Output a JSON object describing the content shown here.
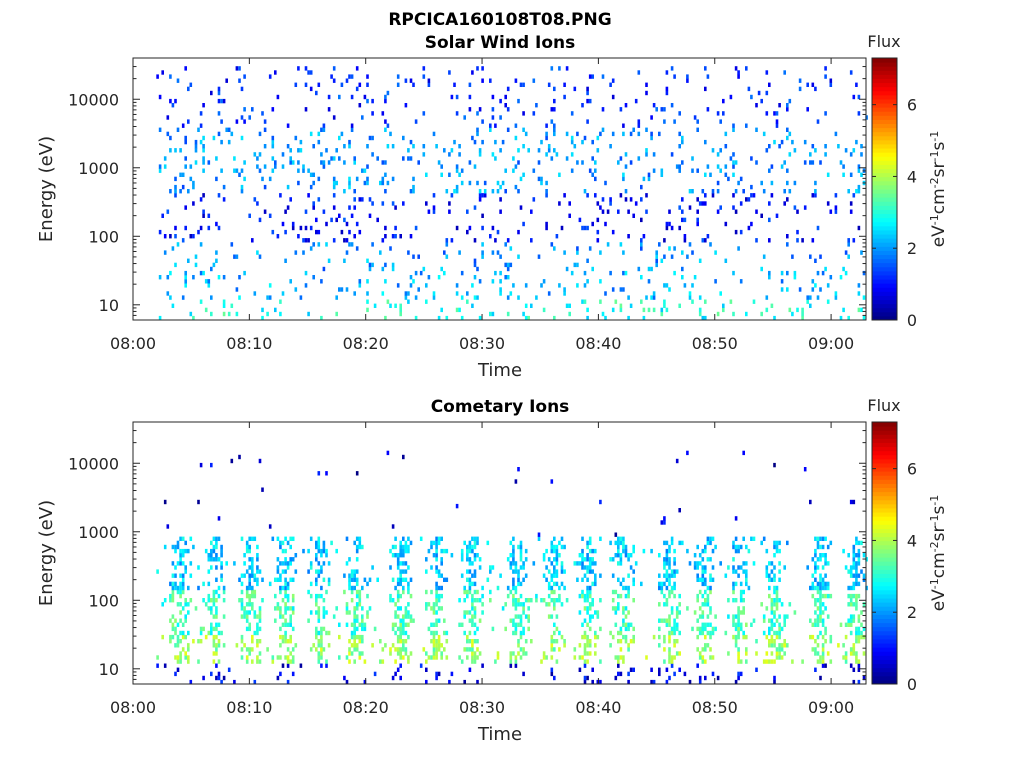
{
  "figure": {
    "title_line1": "RPCICA160108T08.PNG"
  },
  "colorbar": {
    "label": "Flux",
    "unit": "eV-1cm-2sr-1s-1",
    "ticks": [
      "0",
      "2",
      "4",
      "6"
    ],
    "range": [
      0,
      7.3
    ],
    "colormap": "jet"
  },
  "chart_data": [
    {
      "type": "heatmap",
      "title": "Solar Wind Ions",
      "xlabel": "Time",
      "ylabel": "Energy (eV)",
      "x_ticks": [
        "08:00",
        "08:10",
        "08:20",
        "08:30",
        "08:40",
        "08:50",
        "09:00"
      ],
      "y_ticks": [
        "10",
        "100",
        "1000",
        "10000"
      ],
      "y_scale": "log",
      "xlim": [
        "08:00",
        "09:03"
      ],
      "ylim": [
        6,
        40000
      ],
      "x_start": "08:02",
      "x_end": "09:03",
      "energy_bands": [
        {
          "emin": 6,
          "emax": 12,
          "flux": 2.9
        },
        {
          "emin": 12,
          "emax": 30,
          "flux": 2.2
        },
        {
          "emin": 30,
          "emax": 80,
          "flux": 2.0
        },
        {
          "emin": 80,
          "emax": 400,
          "flux": 1.0
        },
        {
          "emin": 400,
          "emax": 4000,
          "flux": 2.0
        },
        {
          "emin": 4000,
          "emax": 30000,
          "flux": 1.2
        }
      ]
    },
    {
      "type": "heatmap",
      "title": "Cometary Ions",
      "xlabel": "Time",
      "ylabel": "Energy (eV)",
      "x_ticks": [
        "08:00",
        "08:10",
        "08:20",
        "08:30",
        "08:40",
        "08:50",
        "09:00"
      ],
      "y_ticks": [
        "10",
        "100",
        "1000",
        "10000"
      ],
      "y_scale": "log",
      "xlim": [
        "08:00",
        "09:03"
      ],
      "ylim": [
        6,
        40000
      ],
      "x_start": "08:02",
      "x_end": "09:03",
      "burst_times": [
        "08:04",
        "08:07",
        "08:10",
        "08:13",
        "08:16",
        "08:19",
        "08:23",
        "08:26",
        "08:29",
        "08:33",
        "08:36",
        "08:39",
        "08:42",
        "08:46",
        "08:49",
        "08:52",
        "08:55",
        "08:59",
        "09:02"
      ],
      "energy_bands": [
        {
          "emin": 6,
          "emax": 12,
          "flux": 0.8
        },
        {
          "emin": 12,
          "emax": 30,
          "flux": 3.8
        },
        {
          "emin": 30,
          "emax": 150,
          "flux": 3.2
        },
        {
          "emin": 150,
          "emax": 900,
          "flux": 2.4
        },
        {
          "emin": 900,
          "emax": 15000,
          "flux": 0.6
        }
      ]
    }
  ]
}
